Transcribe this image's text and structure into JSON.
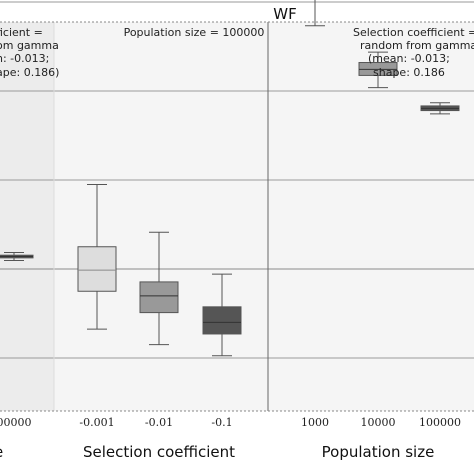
{
  "chart_data": {
    "type": "boxplot",
    "title": "WF",
    "panels": [
      {
        "id": "left",
        "xlabel_fragment": "e",
        "tick_labels": [
          "00000"
        ],
        "annotation": [
          "ficient =",
          "om gamma",
          "n: -0.013;",
          "ape: 0.186)"
        ],
        "boxes": [
          {
            "color": "#555555",
            "whislo": 0.38,
            "q1": 0.5,
            "med": 0.56,
            "q3": 0.62,
            "whishi": 0.74
          }
        ]
      },
      {
        "id": "selection",
        "xlabel": "Selection coefficient",
        "tick_labels": [
          "-0.001",
          "-0.01",
          "-0.1"
        ],
        "annotation": [
          "Population size = 100000"
        ],
        "boxes": [
          {
            "color": "#dddddd",
            "whislo": -2.7,
            "q1": -1.0,
            "med": -0.05,
            "q3": 1.0,
            "whishi": 3.8
          },
          {
            "color": "#999999",
            "whislo": -3.4,
            "q1": -1.96,
            "med": -1.21,
            "q3": -0.58,
            "whishi": 1.65
          },
          {
            "color": "#555555",
            "whislo": -3.9,
            "q1": -2.92,
            "med": -2.4,
            "q3": -1.7,
            "whishi": -0.23
          }
        ]
      },
      {
        "id": "population",
        "xlabel": "Population size",
        "tick_labels": [
          "1000",
          "10000",
          "100000"
        ],
        "annotation": [
          "Selection coefficient =",
          "random from gamma",
          "(mean: -0.013;",
          "shape: 0.186"
        ],
        "boxes": [
          {
            "color": "#dddddd",
            "whislo": 10.93,
            "q1": 12.4,
            "med": 13.05,
            "q3": 13.7,
            "whishi": 15.7
          },
          {
            "color": "#999999",
            "whislo": 8.15,
            "q1": 8.7,
            "med": 8.97,
            "q3": 9.28,
            "whishi": 9.75
          },
          {
            "color": "#555555",
            "whislo": 6.97,
            "q1": 7.12,
            "med": 7.22,
            "q3": 7.33,
            "whishi": 7.47
          }
        ]
      }
    ]
  }
}
